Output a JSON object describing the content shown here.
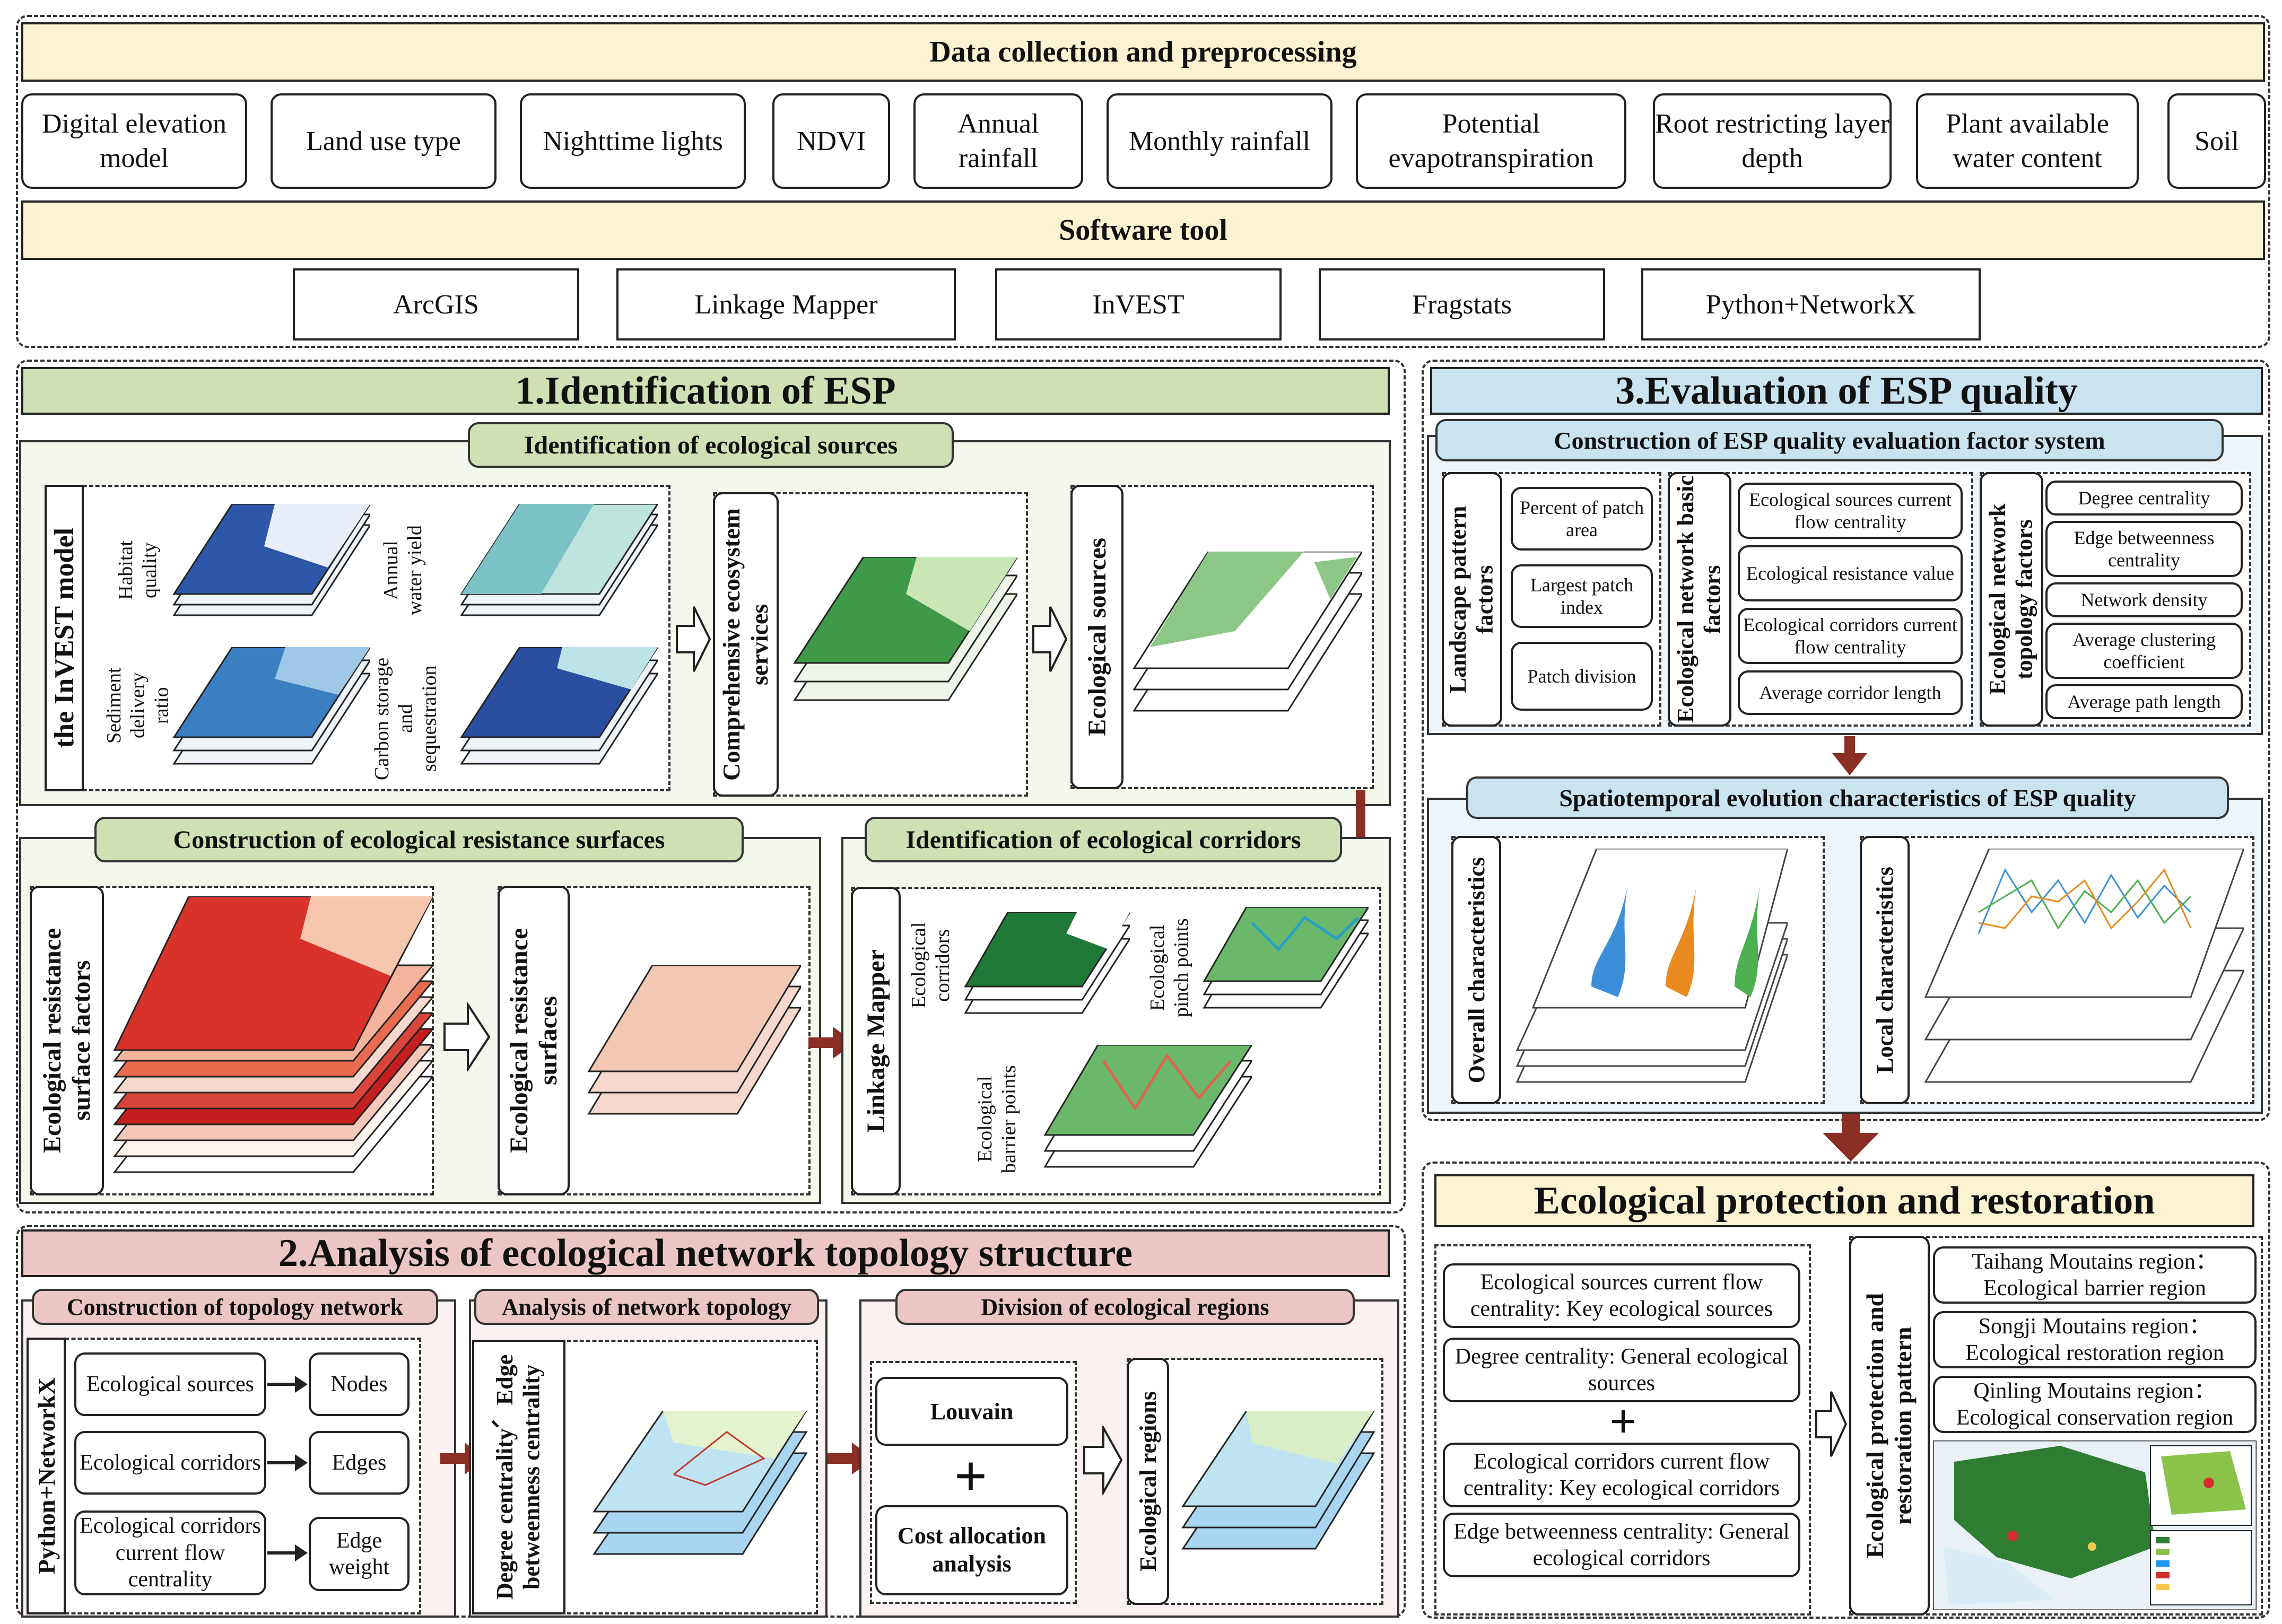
{
  "top": {
    "title": "Data collection and preprocessing",
    "data_items": [
      "Digital elevation model",
      "Land use type",
      "Nighttime lights",
      "NDVI",
      "Annual rainfall",
      "Monthly rainfall",
      "Potential evapotranspiration",
      "Root restricting layer depth",
      "Plant available water content",
      "Soil"
    ],
    "software_title": "Software tool",
    "software_items": [
      "ArcGIS",
      "Linkage Mapper",
      "InVEST",
      "Fragstats",
      "Python+NetworkX"
    ]
  },
  "s1": {
    "title": "1.Identification of ESP",
    "sources_title": "Identification of ecological sources",
    "invest_label": "the InVEST model",
    "map_labels": [
      "Habitat quality",
      "Annual water yield",
      "Sediment delivery ratio",
      "Carbon storage and sequestration"
    ],
    "comprehensive_label": "Comprehensive ecosystem services",
    "eco_sources_label": "Ecological sources",
    "resistance_title": "Construction of ecological resistance surfaces",
    "resistance_factors_label": "Ecological resistance surface factors",
    "resistance_surfaces_label": "Ecological resistance surfaces",
    "corridors_title": "Identification of ecological corridors",
    "linkage_label": "Linkage Mapper",
    "corridor_labels": [
      "Ecological corridors",
      "Ecological pinch points",
      "Ecological barrier points"
    ]
  },
  "s2": {
    "title": "2.Analysis of ecological network topology structure",
    "topo_title": "Construction of topology network",
    "python_label": "Python+NetworkX",
    "left_items": [
      "Ecological sources",
      "Ecological corridors",
      "Ecological corridors current flow centrality"
    ],
    "right_items": [
      "Nodes",
      "Edges",
      "Edge weight"
    ],
    "analysis_title": "Analysis of network topology",
    "analysis_label": "Degree centrality、Edge betweenness centrality",
    "division_title": "Division of ecological regions",
    "louvain": "Louvain",
    "plus": "+",
    "cost_allocation": "Cost allocation analysis",
    "eco_regions_label": "Ecological regions"
  },
  "s3": {
    "title": "3.Evaluation of ESP quality",
    "factor_title": "Construction of ESP quality evaluation factor system",
    "landscape_label": "Landscape pattern factors",
    "landscape_items": [
      "Percent of patch area",
      "Largest patch index",
      "Patch division"
    ],
    "basic_label": "Ecological network basic factors",
    "basic_items": [
      "Ecological sources current flow centrality",
      "Ecological resistance value",
      "Ecological corridors current flow centrality",
      "Average corridor length"
    ],
    "topology_label": "Ecological network topology factors",
    "topology_items": [
      "Degree centrality",
      "Edge betweenness centrality",
      "Network density",
      "Average clustering coefficient",
      "Average path length"
    ],
    "spatio_title": "Spatiotemporal evolution characteristics of ESP quality",
    "overall_label": "Overall characteristics",
    "local_label": "Local characteristics"
  },
  "s4": {
    "title": "Ecological protection and restoration",
    "left_items": [
      "Ecological sources current flow centrality: Key ecological sources",
      "Degree centrality: General ecological sources",
      "Ecological corridors current flow centrality: Key ecological corridors",
      "Edge betweenness centrality: General ecological corridors"
    ],
    "plus": "+",
    "pattern_label": "Ecological protection and restoration pattern",
    "regions": [
      "Taihang Moutains region：Ecological barrier region",
      "Songji Moutains region：Ecological restoration region",
      "Qinling Moutains region：Ecological conservation region"
    ]
  },
  "colors": {
    "arrow": "#8b2e25",
    "green_header": "#cfe0b4",
    "blue_header": "#c9e3f0",
    "pink_header": "#ebc6c4",
    "yellow_header": "#fdf3d2"
  }
}
